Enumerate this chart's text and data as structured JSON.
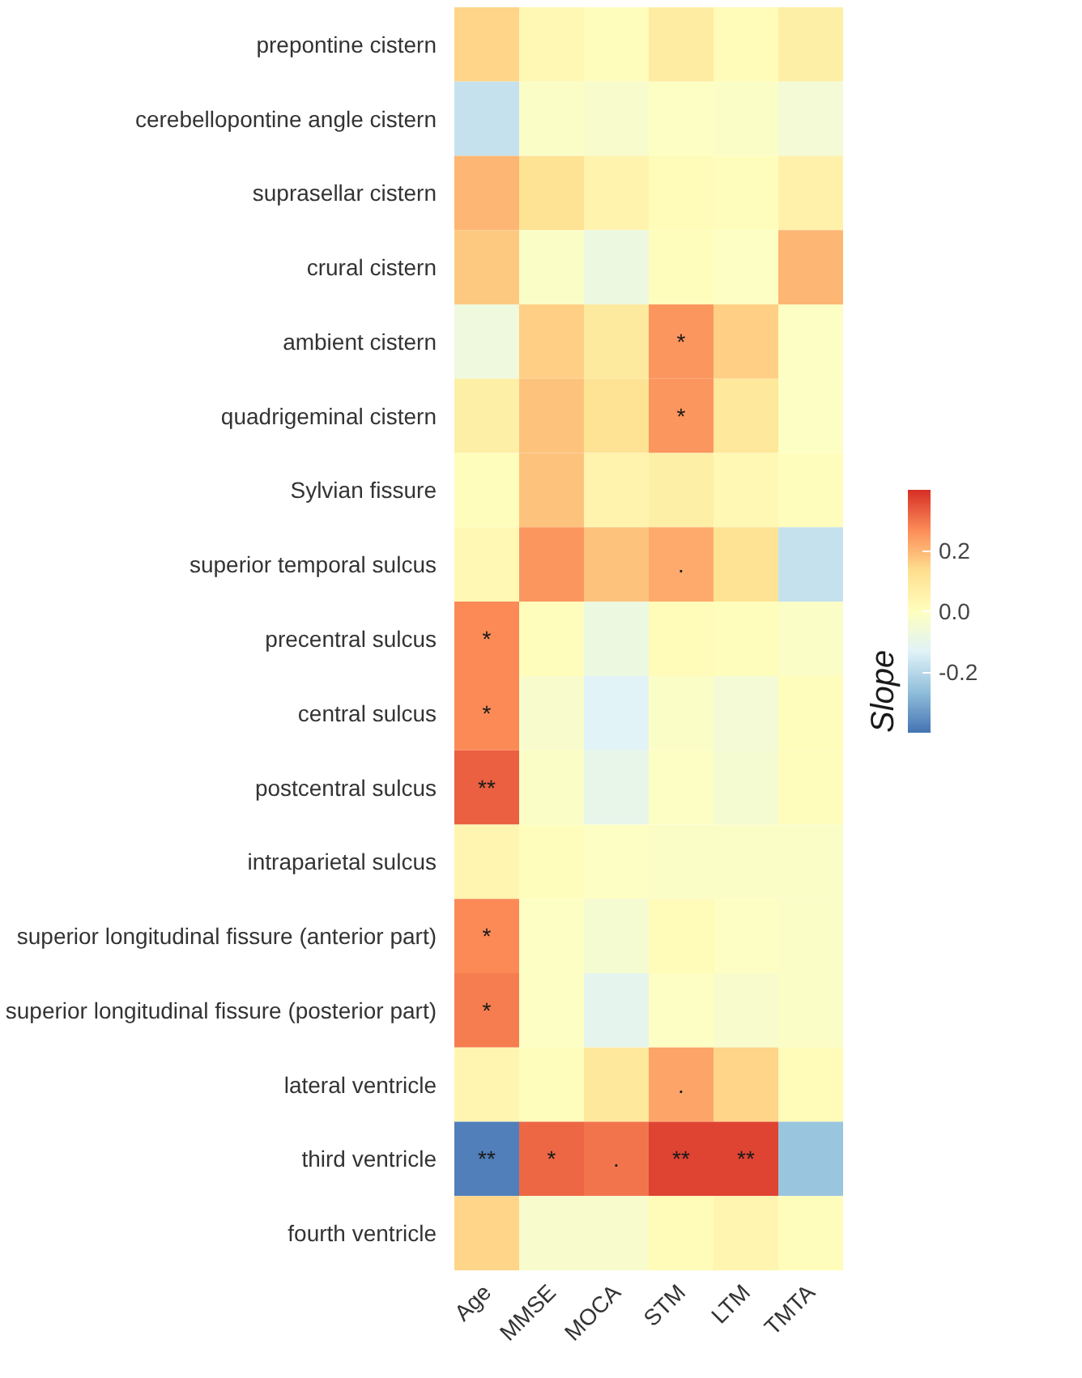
{
  "chart_data": {
    "type": "heatmap",
    "clabel": "Slope",
    "categories": [
      "Age",
      "MMSE",
      "MOCA",
      "STM",
      "LTM",
      "TMTA"
    ],
    "y_categories": [
      "prepontine cistern",
      "cerebellopontine angle cistern",
      "suprasellar cistern",
      "crural cistern",
      "ambient cistern",
      "quadrigeminal cistern",
      "Sylvian fissure",
      "superior temporal sulcus",
      "precentral sulcus",
      "central sulcus",
      "postcentral sulcus",
      "intraparietal sulcus",
      "superior longitudinal fissure (anterior part)",
      "superior longitudinal fissure (posterior part)",
      "lateral ventricle",
      "third ventricle",
      "fourth ventricle"
    ],
    "cells": [
      [
        0.15,
        0.03,
        0.01,
        0.08,
        0.02,
        0.07
      ],
      [
        -0.18,
        -0.02,
        -0.03,
        -0.01,
        -0.02,
        -0.05
      ],
      [
        0.2,
        0.12,
        0.05,
        0.02,
        0.01,
        0.06
      ],
      [
        0.17,
        -0.02,
        -0.08,
        0.01,
        -0.01,
        0.2
      ],
      [
        -0.07,
        0.16,
        0.09,
        0.25,
        0.16,
        -0.01
      ],
      [
        0.07,
        0.18,
        0.12,
        0.25,
        0.1,
        -0.01
      ],
      [
        0.01,
        0.18,
        0.05,
        0.07,
        0.03,
        0.01
      ],
      [
        0.03,
        0.25,
        0.18,
        0.22,
        0.12,
        -0.18
      ],
      [
        0.27,
        0.01,
        -0.08,
        0.02,
        0.01,
        -0.02
      ],
      [
        0.27,
        -0.03,
        -0.13,
        -0.02,
        -0.05,
        0.01
      ],
      [
        0.33,
        -0.02,
        -0.1,
        -0.01,
        -0.04,
        0.01
      ],
      [
        0.04,
        0.01,
        -0.01,
        -0.02,
        -0.02,
        -0.02
      ],
      [
        0.27,
        -0.01,
        -0.04,
        0.02,
        -0.01,
        -0.02
      ],
      [
        0.29,
        -0.01,
        -0.11,
        -0.01,
        -0.03,
        -0.02
      ],
      [
        0.04,
        0.01,
        0.1,
        0.23,
        0.15,
        0.02
      ],
      [
        -0.38,
        0.32,
        0.3,
        0.37,
        0.37,
        -0.25
      ],
      [
        0.15,
        -0.03,
        -0.03,
        0.02,
        0.04,
        0.01
      ]
    ],
    "cell_labels": [
      [
        null,
        null,
        null,
        null,
        null,
        null
      ],
      [
        null,
        null,
        null,
        null,
        null,
        null
      ],
      [
        null,
        null,
        null,
        null,
        null,
        null
      ],
      [
        null,
        null,
        null,
        null,
        null,
        null
      ],
      [
        null,
        null,
        null,
        "*",
        null,
        null
      ],
      [
        null,
        null,
        null,
        "*",
        null,
        null
      ],
      [
        null,
        null,
        null,
        null,
        null,
        null
      ],
      [
        null,
        null,
        null,
        ".",
        null,
        null
      ],
      [
        "*",
        null,
        null,
        null,
        null,
        null
      ],
      [
        "*",
        null,
        null,
        null,
        null,
        null
      ],
      [
        "**",
        null,
        null,
        null,
        null,
        null
      ],
      [
        null,
        null,
        null,
        null,
        null,
        null
      ],
      [
        "*",
        null,
        null,
        null,
        null,
        null
      ],
      [
        "*",
        null,
        null,
        null,
        null,
        null
      ],
      [
        null,
        null,
        null,
        ".",
        null,
        null
      ],
      [
        "**",
        "*",
        ".",
        "**",
        "**",
        null
      ],
      [
        null,
        null,
        null,
        null,
        null,
        null
      ]
    ],
    "clim": [
      -0.4,
      0.4
    ],
    "cticks": [
      -0.2,
      {
        "value": 0,
        "label": "0.0"
      },
      0.2
    ]
  }
}
